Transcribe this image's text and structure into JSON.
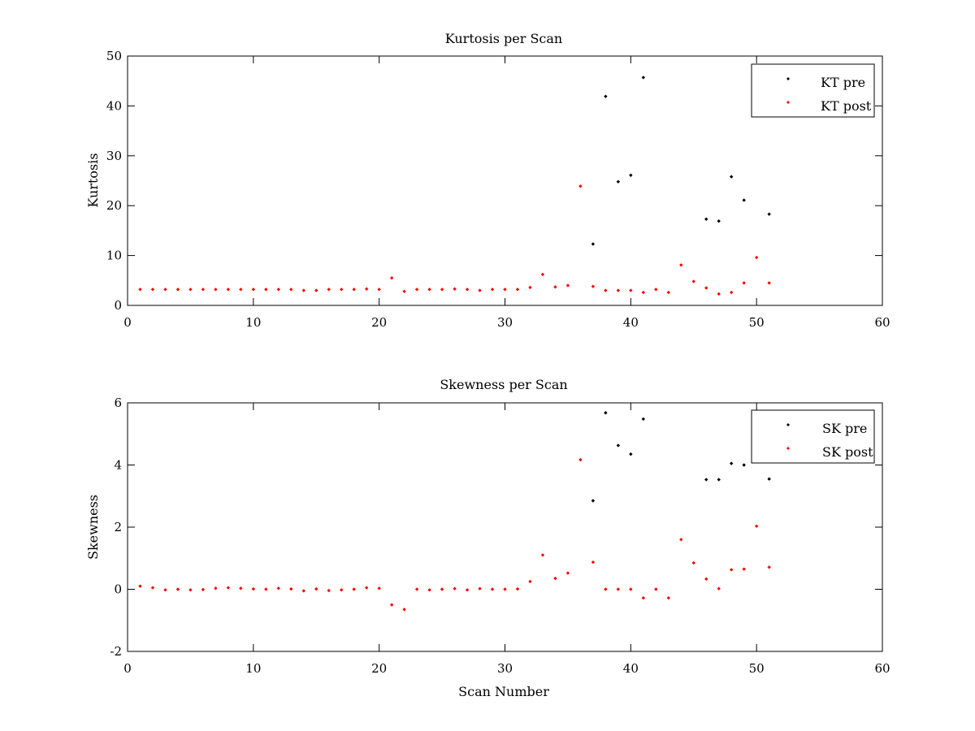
{
  "chart_data": [
    {
      "type": "scatter",
      "title": "Kurtosis per Scan",
      "xlabel": "",
      "ylabel": "Kurtosis",
      "xlim": [
        0,
        60
      ],
      "ylim": [
        0,
        50
      ],
      "xticks": [
        0,
        10,
        20,
        30,
        40,
        50,
        60
      ],
      "yticks": [
        0,
        10,
        20,
        30,
        40,
        50
      ],
      "grid": false,
      "legend_position": "top-right",
      "series": [
        {
          "name": "KT pre",
          "color": "#000000",
          "x": [
            37,
            38,
            39,
            40,
            41,
            46,
            47,
            48,
            49,
            51
          ],
          "y": [
            12.3,
            41.9,
            24.8,
            26.1,
            45.7,
            17.3,
            16.9,
            25.8,
            21.1,
            18.3
          ]
        },
        {
          "name": "KT post",
          "color": "#ff0000",
          "x": [
            1,
            2,
            3,
            4,
            5,
            6,
            7,
            8,
            9,
            10,
            11,
            12,
            13,
            14,
            15,
            16,
            17,
            18,
            19,
            20,
            21,
            22,
            23,
            24,
            25,
            26,
            27,
            28,
            29,
            30,
            31,
            32,
            33,
            34,
            35,
            36,
            37,
            38,
            39,
            40,
            41,
            42,
            43,
            44,
            45,
            46,
            47,
            48,
            49,
            50,
            51
          ],
          "y": [
            3.2,
            3.2,
            3.2,
            3.2,
            3.2,
            3.2,
            3.2,
            3.2,
            3.2,
            3.2,
            3.2,
            3.2,
            3.2,
            3.0,
            3.0,
            3.2,
            3.2,
            3.2,
            3.3,
            3.2,
            5.5,
            2.8,
            3.2,
            3.2,
            3.2,
            3.3,
            3.2,
            3.0,
            3.2,
            3.2,
            3.2,
            3.6,
            6.2,
            3.7,
            4.0,
            23.9,
            3.8,
            3.0,
            3.0,
            3.0,
            2.6,
            3.2,
            2.6,
            8.1,
            4.8,
            3.5,
            2.3,
            2.6,
            4.5,
            9.6,
            4.5
          ]
        }
      ]
    },
    {
      "type": "scatter",
      "title": "Skewness per Scan",
      "xlabel": "Scan Number",
      "ylabel": "Skewness",
      "xlim": [
        0,
        60
      ],
      "ylim": [
        -2,
        6
      ],
      "xticks": [
        0,
        10,
        20,
        30,
        40,
        50,
        60
      ],
      "yticks": [
        -2,
        0,
        2,
        4,
        6
      ],
      "grid": false,
      "legend_position": "top-right",
      "series": [
        {
          "name": "SK pre",
          "color": "#000000",
          "x": [
            37,
            38,
            39,
            40,
            41,
            46,
            47,
            48,
            49,
            51
          ],
          "y": [
            2.85,
            5.68,
            4.63,
            4.35,
            5.48,
            3.53,
            3.53,
            4.05,
            4.0,
            3.55
          ]
        },
        {
          "name": "SK post",
          "color": "#ff0000",
          "x": [
            1,
            2,
            3,
            4,
            5,
            6,
            7,
            8,
            9,
            10,
            11,
            12,
            13,
            14,
            15,
            16,
            17,
            18,
            19,
            20,
            21,
            22,
            23,
            24,
            25,
            26,
            27,
            28,
            29,
            30,
            31,
            32,
            33,
            34,
            35,
            36,
            37,
            38,
            39,
            40,
            41,
            42,
            43,
            44,
            45,
            46,
            47,
            48,
            49,
            50,
            51
          ],
          "y": [
            0.1,
            0.05,
            -0.02,
            0.0,
            -0.02,
            -0.01,
            0.03,
            0.05,
            0.03,
            0.01,
            0.0,
            0.03,
            0.01,
            -0.05,
            0.01,
            -0.04,
            -0.02,
            0.0,
            0.05,
            0.03,
            -0.5,
            -0.65,
            0.0,
            -0.02,
            0.0,
            0.02,
            -0.02,
            0.02,
            0.0,
            0.0,
            0.01,
            0.25,
            1.1,
            0.35,
            0.52,
            4.17,
            0.87,
            0.0,
            0.0,
            0.0,
            -0.28,
            0.0,
            -0.28,
            1.6,
            0.85,
            0.33,
            0.02,
            0.63,
            0.65,
            2.03,
            0.71
          ]
        }
      ]
    }
  ]
}
